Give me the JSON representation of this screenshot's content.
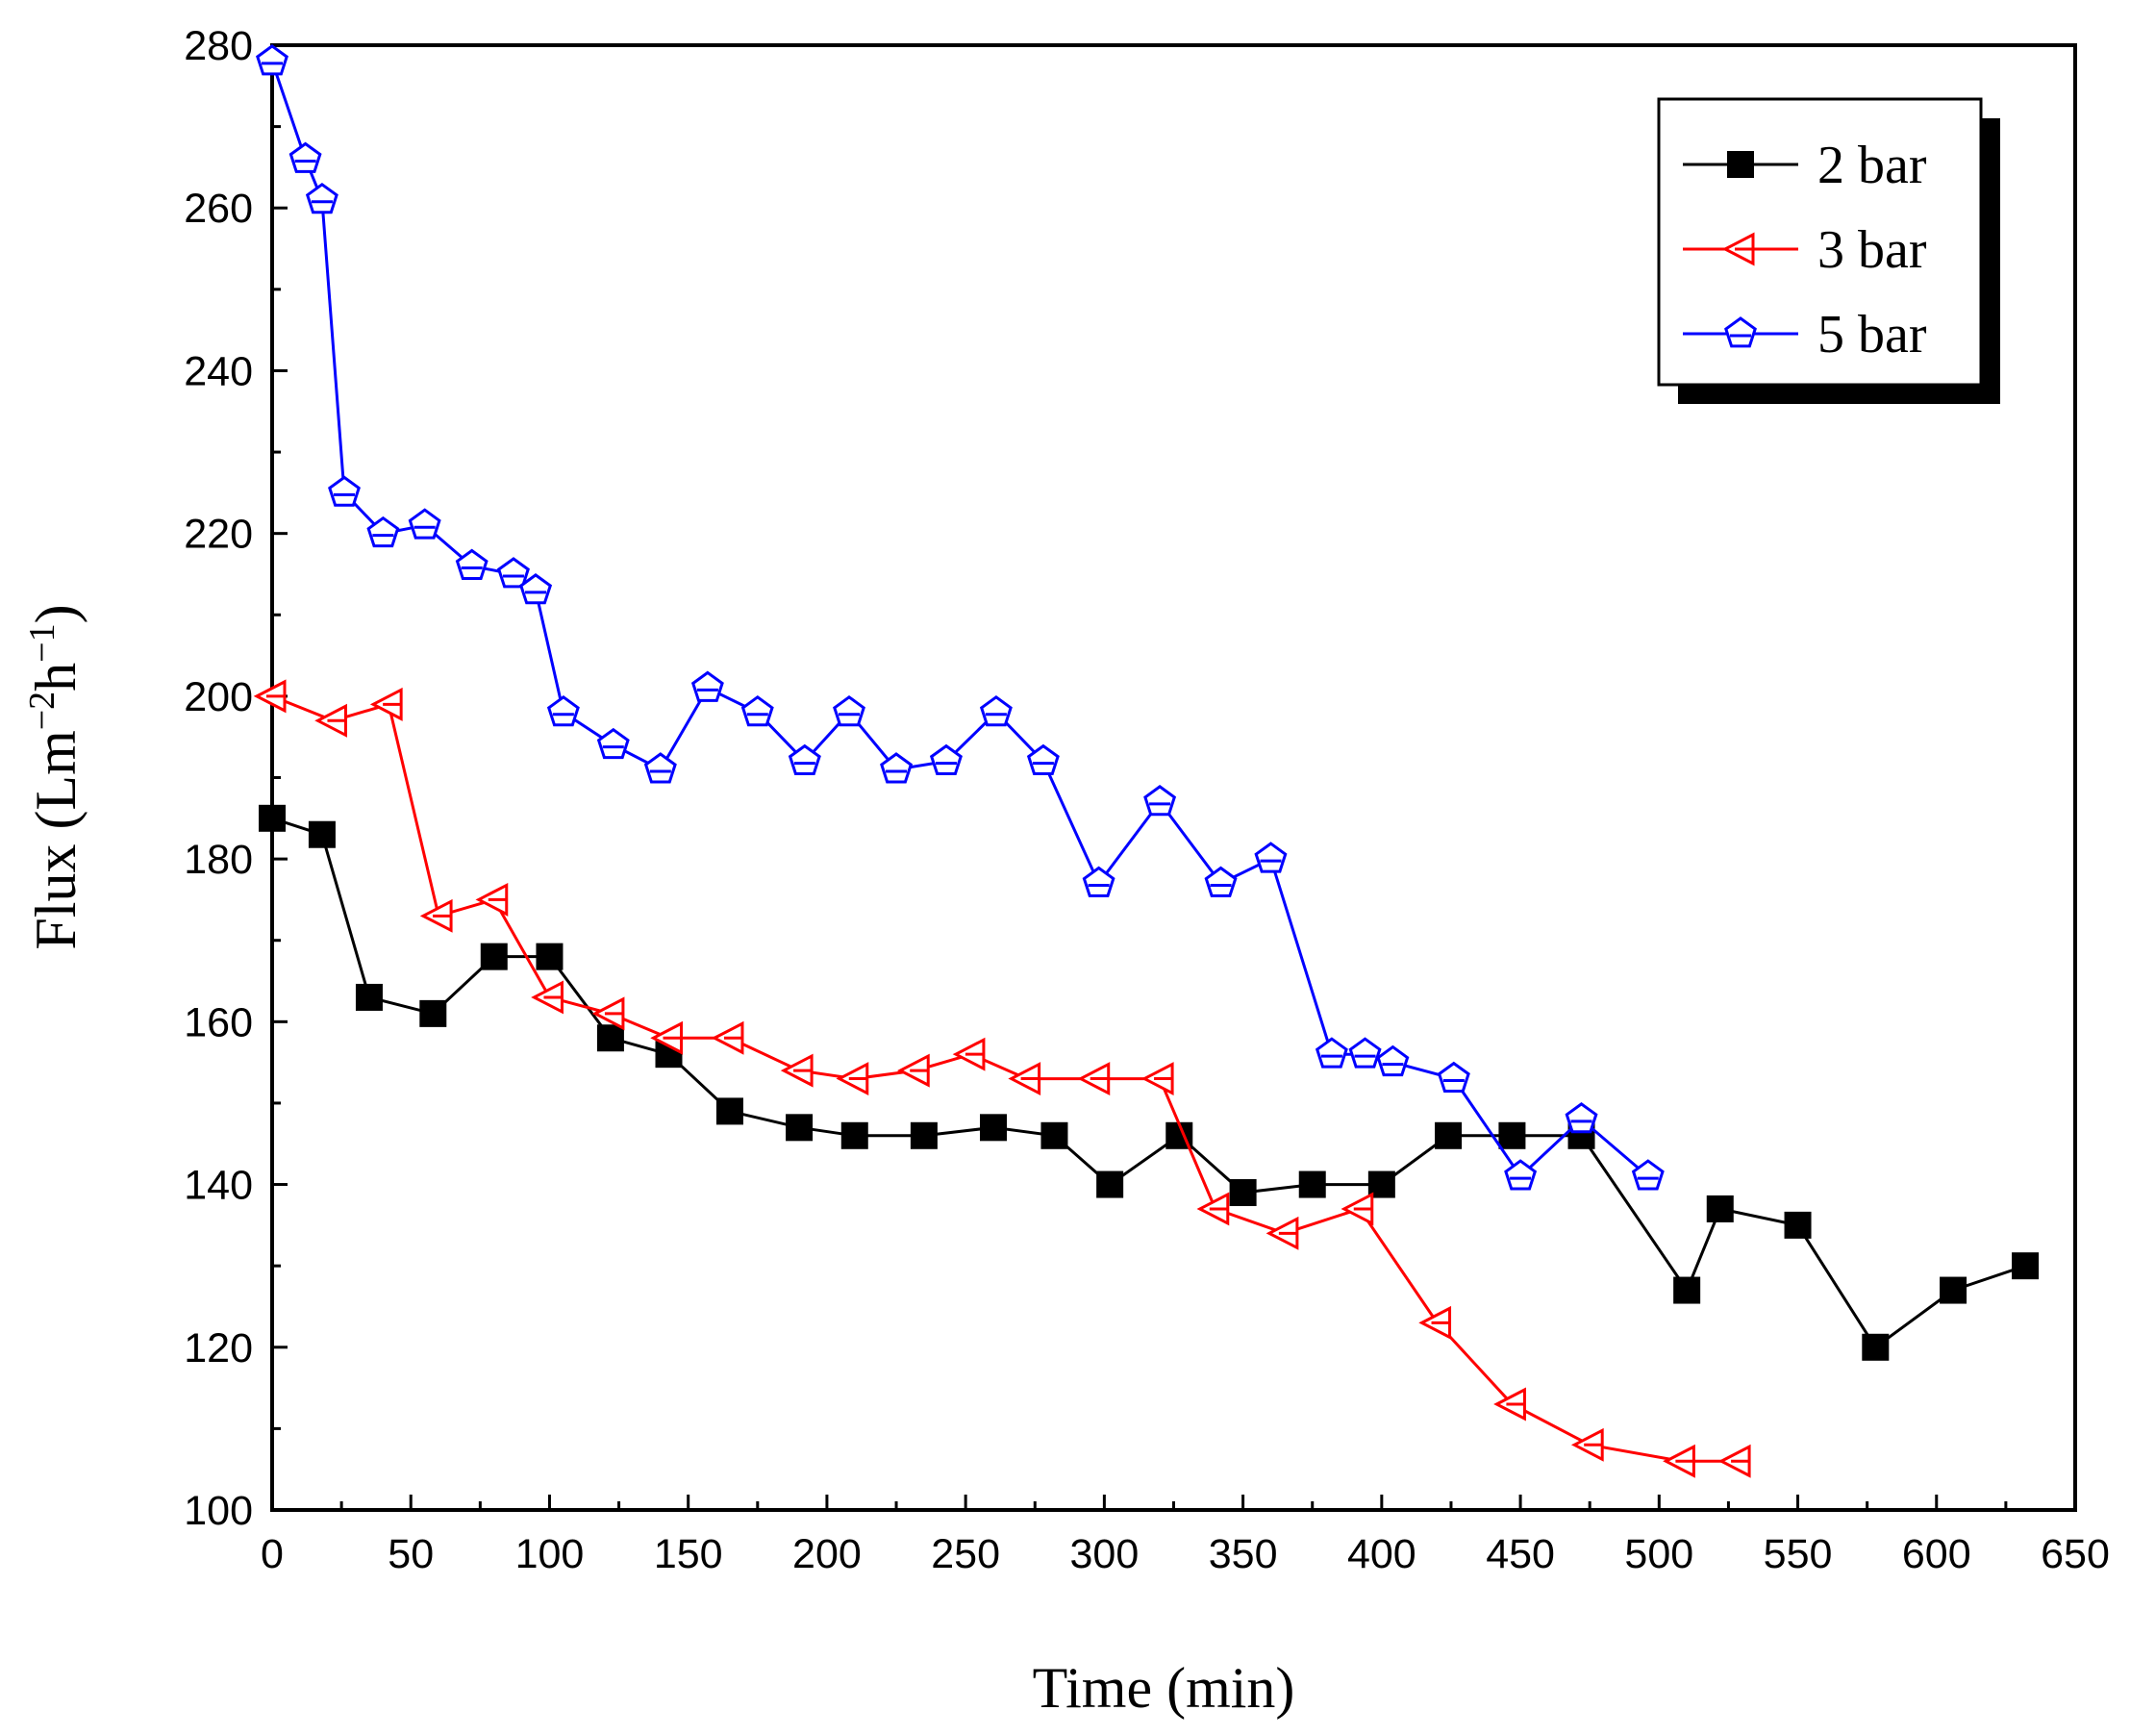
{
  "chart_data": {
    "type": "line",
    "title": "",
    "xlabel": "Time (min)",
    "ylabel": "Flux (Lm⁻²h⁻¹)",
    "xlim": [
      0,
      650
    ],
    "ylim": [
      100,
      280
    ],
    "xticks": [
      0,
      50,
      100,
      150,
      200,
      250,
      300,
      350,
      400,
      450,
      500,
      550,
      600,
      650
    ],
    "yticks": [
      100,
      120,
      140,
      160,
      180,
      200,
      220,
      240,
      260,
      280
    ],
    "grid": false,
    "legend_position": "top-right",
    "series": [
      {
        "name": "2 bar",
        "color": "#000000",
        "marker": "filled-square",
        "x": [
          0,
          18,
          35,
          58,
          80,
          100,
          122,
          143,
          165,
          190,
          210,
          235,
          260,
          282,
          302,
          327,
          350,
          375,
          400,
          424,
          447,
          472,
          510,
          522,
          550,
          578,
          606,
          632
        ],
        "y": [
          185,
          183,
          163,
          161,
          168,
          168,
          158,
          156,
          149,
          147,
          146,
          146,
          147,
          146,
          140,
          146,
          139,
          140,
          140,
          146,
          146,
          146,
          127,
          137,
          135,
          120,
          127,
          130
        ]
      },
      {
        "name": "3 bar",
        "color": "#ff0000",
        "marker": "open-left-triangle",
        "x": [
          0,
          22,
          42,
          60,
          80,
          100,
          122,
          143,
          165,
          190,
          210,
          232,
          252,
          272,
          297,
          320,
          340,
          365,
          392,
          420,
          447,
          475,
          508,
          528
        ],
        "y": [
          200,
          197,
          199,
          173,
          175,
          163,
          161,
          158,
          158,
          154,
          153,
          154,
          156,
          153,
          153,
          153,
          137,
          134,
          137,
          123,
          113,
          108,
          106,
          106
        ]
      },
      {
        "name": "5 bar",
        "color": "#0000ff",
        "marker": "open-pentagon",
        "x": [
          0,
          12,
          18,
          26,
          40,
          55,
          72,
          87,
          95,
          105,
          123,
          140,
          157,
          175,
          192,
          208,
          225,
          243,
          261,
          278,
          298,
          320,
          342,
          360,
          382,
          394,
          404,
          426,
          450,
          472,
          496
        ],
        "y": [
          278,
          266,
          261,
          225,
          220,
          221,
          216,
          215,
          213,
          198,
          194,
          191,
          201,
          198,
          192,
          198,
          191,
          192,
          198,
          192,
          177,
          187,
          177,
          180,
          156,
          156,
          155,
          153,
          141,
          148,
          141
        ]
      }
    ]
  }
}
